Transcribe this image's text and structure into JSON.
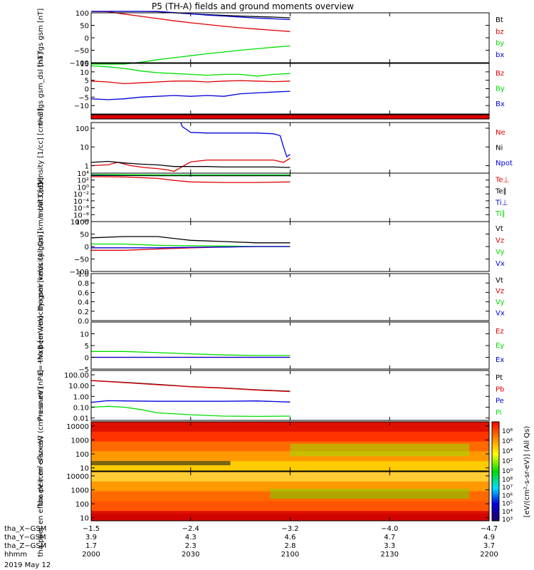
{
  "title": "P5 (TH-A) fields and ground moments overview",
  "date_label": "2019 May 12",
  "colors": {
    "black": "#000000",
    "red": "#e00000",
    "green": "#00dd00",
    "blue": "#0000dd"
  },
  "chart_data": [
    {
      "type": "line",
      "ylabel": "tha fgs gsm [nT]",
      "ylim": [
        -100,
        100
      ],
      "yticks": [
        {
          "v": 100,
          "t": "100"
        },
        {
          "v": 50,
          "t": "50"
        },
        {
          "v": 0,
          "t": "0"
        },
        {
          "v": -50,
          "t": "−50"
        },
        {
          "v": -100,
          "t": "−100"
        }
      ],
      "series": [
        {
          "name": "Bt",
          "color": "#000000",
          "x": [
            0,
            5,
            10,
            15,
            20,
            25,
            30,
            35,
            40,
            45,
            50,
            55,
            60
          ],
          "y": [
            130,
            122,
            116,
            110,
            105,
            100,
            96,
            93,
            90,
            87,
            85,
            83,
            80
          ]
        },
        {
          "name": "bz",
          "color": "#e00000",
          "x": [
            0,
            5,
            10,
            15,
            20,
            25,
            30,
            35,
            40,
            45,
            50,
            55,
            60
          ],
          "y": [
            115,
            105,
            95,
            86,
            77,
            68,
            60,
            53,
            46,
            40,
            35,
            30,
            25
          ]
        },
        {
          "name": "by",
          "color": "#00dd00",
          "x": [
            0,
            5,
            10,
            15,
            20,
            25,
            30,
            35,
            40,
            45,
            50,
            55,
            60
          ],
          "y": [
            -130,
            -118,
            -108,
            -98,
            -88,
            -80,
            -72,
            -64,
            -57,
            -50,
            -44,
            -38,
            -33
          ]
        },
        {
          "name": "bx",
          "color": "#0000dd",
          "x": [
            0,
            5,
            10,
            15,
            20,
            25,
            30,
            35,
            40,
            45,
            50,
            55,
            60
          ],
          "y": [
            130,
            125,
            119,
            113,
            107,
            101,
            96,
            91,
            87,
            83,
            79,
            76,
            73
          ]
        }
      ]
    },
    {
      "type": "line",
      "ylabel": "tha fgs gsm_dsl [nT]",
      "ylim": [
        -15,
        15
      ],
      "yticks": [
        {
          "v": 15,
          "t": "15"
        },
        {
          "v": 10,
          "t": "10"
        },
        {
          "v": 5,
          "t": "5"
        },
        {
          "v": 0,
          "t": "0"
        },
        {
          "v": -5,
          "t": "−5"
        },
        {
          "v": -10,
          "t": "−10"
        }
      ],
      "series": [
        {
          "name": "Bz",
          "color": "#e00000",
          "x": [
            0,
            5,
            10,
            15,
            20,
            25,
            30,
            35,
            40,
            45,
            50,
            55,
            60
          ],
          "y": [
            4.5,
            4,
            3,
            3.5,
            4,
            4.5,
            4.5,
            4,
            4.5,
            4.8,
            4.5,
            4.2,
            4.5
          ]
        },
        {
          "name": "By",
          "color": "#00dd00",
          "x": [
            0,
            5,
            10,
            15,
            20,
            25,
            30,
            35,
            40,
            45,
            50,
            55,
            60
          ],
          "y": [
            13.5,
            13,
            12,
            10.5,
            9.5,
            9,
            8.5,
            8,
            8.5,
            8.5,
            7.5,
            8.5,
            9
          ]
        },
        {
          "name": "Bx",
          "color": "#0000dd",
          "x": [
            0,
            5,
            10,
            15,
            20,
            25,
            30,
            35,
            40,
            45,
            50,
            55,
            60
          ],
          "y": [
            -6,
            -6.5,
            -6,
            -5,
            -4.5,
            -4,
            -4.5,
            -4,
            -4.5,
            -3,
            -2.5,
            -2,
            -1.5
          ]
        }
      ]
    },
    {
      "type": "line",
      "ylabel": "Density [1/cc] [cm−3]",
      "yscale": "log",
      "ylim": [
        0.4,
        200
      ],
      "yticks": [
        {
          "v": 100,
          "t": "100"
        },
        {
          "v": 10,
          "t": "10"
        },
        {
          "v": 1,
          "t": "1"
        }
      ],
      "series": [
        {
          "name": "Ne",
          "color": "#e00000",
          "x": [
            0,
            5,
            8,
            12,
            16,
            20,
            23,
            25,
            28,
            30,
            35,
            40,
            45,
            50,
            55,
            58,
            60
          ],
          "y": [
            1,
            1.1,
            1.5,
            1,
            0.8,
            0.7,
            0.6,
            0.5,
            1,
            1.6,
            2,
            2,
            2,
            2,
            2,
            1.5,
            2.5
          ]
        },
        {
          "name": "Ni",
          "color": "#000000",
          "x": [
            0,
            5,
            10,
            15,
            20,
            25,
            30,
            35,
            40,
            45,
            50,
            55,
            60
          ],
          "y": [
            1.5,
            1.7,
            1.4,
            1.2,
            1.1,
            0.9,
            0.9,
            0.9,
            0.85,
            0.85,
            0.85,
            0.85,
            0.8
          ]
        },
        {
          "name": "Npot",
          "color": "#0000dd",
          "x": [
            27,
            27.5,
            29,
            30,
            35,
            40,
            45,
            50,
            55,
            57,
            58,
            59,
            60
          ],
          "y": [
            200,
            120,
            80,
            60,
            55,
            55,
            55,
            55,
            50,
            40,
            10,
            3,
            4
          ]
        }
      ]
    },
    {
      "type": "line",
      "ylabel": "moat3 [eV]",
      "yscale": "log",
      "ylim": [
        1e-10,
        10000
      ],
      "yticks": [
        {
          "v": 10000,
          "t": "10⁴"
        },
        {
          "v": 100,
          "t": "10²"
        },
        {
          "v": 1,
          "t": "10⁰"
        },
        {
          "v": 0.01,
          "t": "10⁻²"
        },
        {
          "v": 0.0001,
          "t": "10⁻⁴"
        },
        {
          "v": 1e-06,
          "t": "10⁻⁶"
        },
        {
          "v": 1e-08,
          "t": "10⁻⁸"
        },
        {
          "v": 1e-10,
          "t": "10⁻¹⁰"
        }
      ],
      "series": [
        {
          "name": "Te⊥",
          "color": "#e00000",
          "x": [
            0,
            10,
            20,
            25,
            30,
            40,
            50,
            60
          ],
          "y": [
            1000,
            800,
            300,
            80,
            30,
            20,
            20,
            30
          ]
        },
        {
          "name": "Te∥",
          "color": "#000000",
          "x": [
            0,
            10,
            20,
            30,
            40,
            50,
            60
          ],
          "y": [
            2000,
            2000,
            1800,
            1800,
            1800,
            1800,
            1800
          ]
        },
        {
          "name": "Ti⊥",
          "color": "#0000dd",
          "x": [
            0,
            10,
            20,
            30,
            40,
            50,
            60
          ],
          "y": [
            3000,
            3000,
            3000,
            3000,
            3000,
            3000,
            3000
          ]
        },
        {
          "name": "Ti∥",
          "color": "#00dd00",
          "x": [
            0,
            10,
            20,
            30,
            40,
            50,
            60
          ],
          "y": [
            4000,
            3500,
            3000,
            3000,
            3000,
            3000,
            3000
          ]
        }
      ]
    },
    {
      "type": "line",
      "ylabel": "tha peir velocity gsm [km/s (All Qs)]",
      "ylim": [
        -100,
        100
      ],
      "yticks": [
        {
          "v": 100,
          "t": "100"
        },
        {
          "v": 50,
          "t": "50"
        },
        {
          "v": 0,
          "t": "0"
        },
        {
          "v": -50,
          "t": "−50"
        },
        {
          "v": -100,
          "t": "−100"
        }
      ],
      "series": [
        {
          "name": "Vt",
          "color": "#000000",
          "x": [
            0,
            10,
            20,
            30,
            40,
            50,
            60
          ],
          "y": [
            35,
            40,
            40,
            25,
            20,
            15,
            15
          ]
        },
        {
          "name": "Vz",
          "color": "#e00000",
          "x": [
            0,
            10,
            20,
            30,
            40,
            50,
            60
          ],
          "y": [
            -15,
            -15,
            -10,
            -5,
            -2,
            0,
            0
          ]
        },
        {
          "name": "Vy",
          "color": "#00dd00",
          "x": [
            0,
            10,
            20,
            30,
            40,
            50,
            60
          ],
          "y": [
            10,
            10,
            5,
            3,
            2,
            0,
            0
          ]
        },
        {
          "name": "Vx",
          "color": "#0000dd",
          "x": [
            0,
            10,
            20,
            30,
            40,
            50,
            60
          ],
          "y": [
            -5,
            -5,
            -5,
            -3,
            -2,
            0,
            0
          ]
        }
      ]
    },
    {
      "type": "line",
      "ylabel": "tha peer velocity gsm [km/s (All Qs)]",
      "ylim": [
        0,
        1
      ],
      "yticks": [
        {
          "v": 1,
          "t": "1.0"
        },
        {
          "v": 0.8,
          "t": "0.8"
        },
        {
          "v": 0.6,
          "t": "0.6"
        },
        {
          "v": 0.4,
          "t": "0.4"
        },
        {
          "v": 0.2,
          "t": "0.2"
        },
        {
          "v": 0,
          "t": "0.0"
        }
      ],
      "series": [
        {
          "name": "Vt",
          "color": "#000000",
          "x": [],
          "y": []
        },
        {
          "name": "Vz",
          "color": "#e00000",
          "x": [],
          "y": []
        },
        {
          "name": "Vy",
          "color": "#00dd00",
          "x": [],
          "y": []
        },
        {
          "name": "Vx",
          "color": "#0000dd",
          "x": [],
          "y": []
        }
      ]
    },
    {
      "type": "line",
      "ylabel": "E=−VxB [mV/m]",
      "ylim": [
        -5,
        15
      ],
      "yticks": [
        {
          "v": 10,
          "t": "10"
        },
        {
          "v": 5,
          "t": "5"
        },
        {
          "v": 0,
          "t": "0"
        },
        {
          "v": -5,
          "t": "−5"
        }
      ],
      "series": [
        {
          "name": "Ez",
          "color": "#e00000",
          "x": [
            0,
            10,
            20,
            30,
            40,
            50,
            60
          ],
          "y": [
            0,
            0,
            0,
            0,
            0,
            0,
            0
          ]
        },
        {
          "name": "Ey",
          "color": "#00dd00",
          "x": [
            0,
            10,
            20,
            30,
            40,
            50,
            60
          ],
          "y": [
            2.5,
            2.5,
            2,
            1.5,
            1,
            0.8,
            0.8
          ]
        },
        {
          "name": "Ex",
          "color": "#0000dd",
          "x": [
            0,
            10,
            20,
            30,
            40,
            50,
            60
          ],
          "y": [
            0,
            0,
            0,
            0,
            0,
            0,
            0
          ]
        }
      ]
    },
    {
      "type": "line",
      "ylabel": "Pressure [nPa]",
      "yscale": "log",
      "ylim": [
        0.006,
        250
      ],
      "yticks": [
        {
          "v": 100,
          "t": "100.00"
        },
        {
          "v": 10,
          "t": "10.00"
        },
        {
          "v": 1,
          "t": "1.00"
        },
        {
          "v": 0.1,
          "t": "0.10"
        },
        {
          "v": 0.01,
          "t": "0.01"
        }
      ],
      "series": [
        {
          "name": "Pt",
          "color": "#000000",
          "x": [
            0,
            10,
            20,
            30,
            40,
            50,
            60
          ],
          "y": [
            30,
            20,
            13,
            8,
            6,
            4,
            3
          ]
        },
        {
          "name": "Pb",
          "color": "#e00000",
          "x": [
            0,
            10,
            20,
            30,
            40,
            50,
            60
          ],
          "y": [
            29,
            19,
            12,
            7.8,
            5.8,
            3.8,
            2.8
          ]
        },
        {
          "name": "Pe",
          "color": "#0000dd",
          "x": [
            0,
            5,
            10,
            20,
            30,
            40,
            50,
            60
          ],
          "y": [
            0.28,
            0.4,
            0.38,
            0.35,
            0.35,
            0.35,
            0.38,
            0.3
          ]
        },
        {
          "name": "Pi",
          "color": "#00dd00",
          "x": [
            0,
            5,
            10,
            15,
            20,
            30,
            40,
            50,
            60
          ],
          "y": [
            0.1,
            0.12,
            0.1,
            0.06,
            0.03,
            0.02,
            0.015,
            0.014,
            0.015
          ]
        }
      ]
    },
    {
      "type": "heatmap",
      "ylabel": "tha peir en eflux eV (cm²-s-sr-eV)",
      "yscale": "log",
      "ylim": [
        6,
        20000
      ],
      "yticks": [
        {
          "v": 10000,
          "t": "10000"
        },
        {
          "v": 1000,
          "t": "1000"
        },
        {
          "v": 100,
          "t": "100"
        },
        {
          "v": 10,
          "t": "10"
        }
      ]
    },
    {
      "type": "heatmap",
      "ylabel": "tha peer en eflux eV (cm²-s-sr-eV)",
      "yscale": "log",
      "ylim": [
        6,
        20000
      ],
      "yticks": [
        {
          "v": 10000,
          "t": "10000"
        },
        {
          "v": 1000,
          "t": "1000"
        },
        {
          "v": 100,
          "t": "100"
        },
        {
          "v": 10,
          "t": "10"
        }
      ]
    }
  ],
  "colorbar": {
    "label": "[eV/(cm²-s-sr-eV)] (All Qs)",
    "ticks_top": [
      "10⁸",
      "10⁶",
      "10⁴",
      "10²",
      "10⁰"
    ],
    "ticks_bottom": [
      "10⁸",
      "10⁷",
      "10⁶",
      "10⁵",
      "10⁴",
      "10³"
    ]
  },
  "xaxis": {
    "xlim": [
      0,
      120
    ],
    "ticks": [
      0,
      30,
      60,
      90,
      120
    ],
    "rows": [
      {
        "label": "tha_X−GSM",
        "values": [
          "−1.5",
          "−2.4",
          "−3.2",
          "−4.0",
          "−4.7"
        ]
      },
      {
        "label": "tha_Y−GSM",
        "values": [
          "3.9",
          "4.3",
          "4.6",
          "4.7",
          "4.9"
        ]
      },
      {
        "label": "tha_Z−GSM",
        "values": [
          "1.7",
          "2.3",
          "2.8",
          "3.3",
          "3.7"
        ]
      },
      {
        "label": "hhmm",
        "values": [
          "2000",
          "2030",
          "2100",
          "2130",
          "2200"
        ]
      }
    ]
  }
}
